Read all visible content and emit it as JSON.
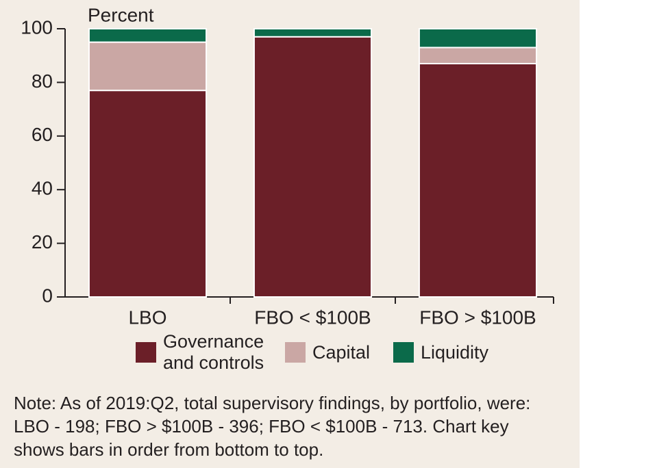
{
  "chart_data": {
    "type": "stacked_bar",
    "ylabel": "Percent",
    "categories": [
      "LBO",
      "FBO < $100B",
      "FBO > $100B"
    ],
    "series": [
      {
        "name": "Governance and controls",
        "color": "#6b1f28",
        "values": [
          77,
          97,
          87
        ]
      },
      {
        "name": "Capital",
        "color": "#caa7a4",
        "values": [
          18,
          0,
          6
        ]
      },
      {
        "name": "Liquidity",
        "color": "#0b6a4a",
        "values": [
          5,
          3,
          7
        ]
      }
    ],
    "ylim": [
      0,
      100
    ],
    "yticks": [
      0,
      20,
      40,
      60,
      80,
      100
    ],
    "note": "Note: As of 2019:Q2, total supervisory findings, by portfolio, were: LBO - 198; FBO > $100B - 396; FBO < $100B - 713. Chart key shows bars in order from bottom to top."
  }
}
